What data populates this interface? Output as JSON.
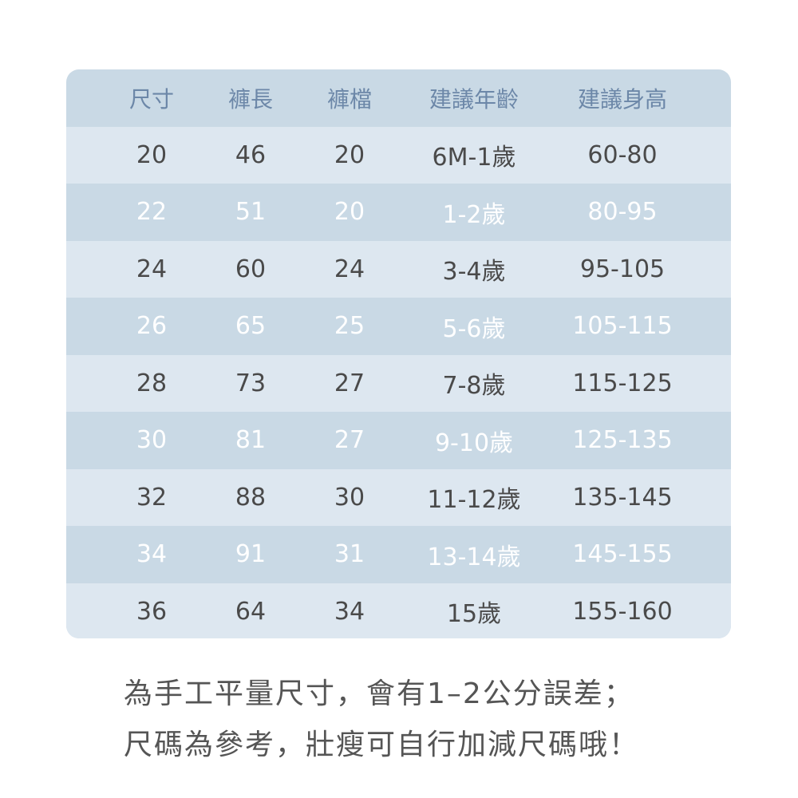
{
  "table": {
    "headers": [
      "尺寸",
      "褲長",
      "褲檔",
      "建議年齡",
      "建議身高"
    ],
    "rows": [
      [
        "20",
        "46",
        "20",
        "6M-1歲",
        "60-80"
      ],
      [
        "22",
        "51",
        "20",
        "1-2歲",
        "80-95"
      ],
      [
        "24",
        "60",
        "24",
        "3-4歲",
        "95-105"
      ],
      [
        "26",
        "65",
        "25",
        "5-6歲",
        "105-115"
      ],
      [
        "28",
        "73",
        "27",
        "7-8歲",
        "115-125"
      ],
      [
        "30",
        "81",
        "27",
        "9-10歲",
        "125-135"
      ],
      [
        "32",
        "88",
        "30",
        "11-12歲",
        "135-145"
      ],
      [
        "34",
        "91",
        "31",
        "13-14歲",
        "145-155"
      ],
      [
        "36",
        "64",
        "34",
        "15歲",
        "155-160"
      ]
    ]
  },
  "notes": [
    "為手工平量尺寸，會有1–2公分誤差；",
    "尺碼為參考，壯瘦可自行加減尺碼哦！"
  ],
  "colors": {
    "header_bg": "#c9d9e5",
    "row_light": "#dde7f0",
    "row_dark": "#c9d9e5",
    "header_text": "#6c87a8"
  }
}
